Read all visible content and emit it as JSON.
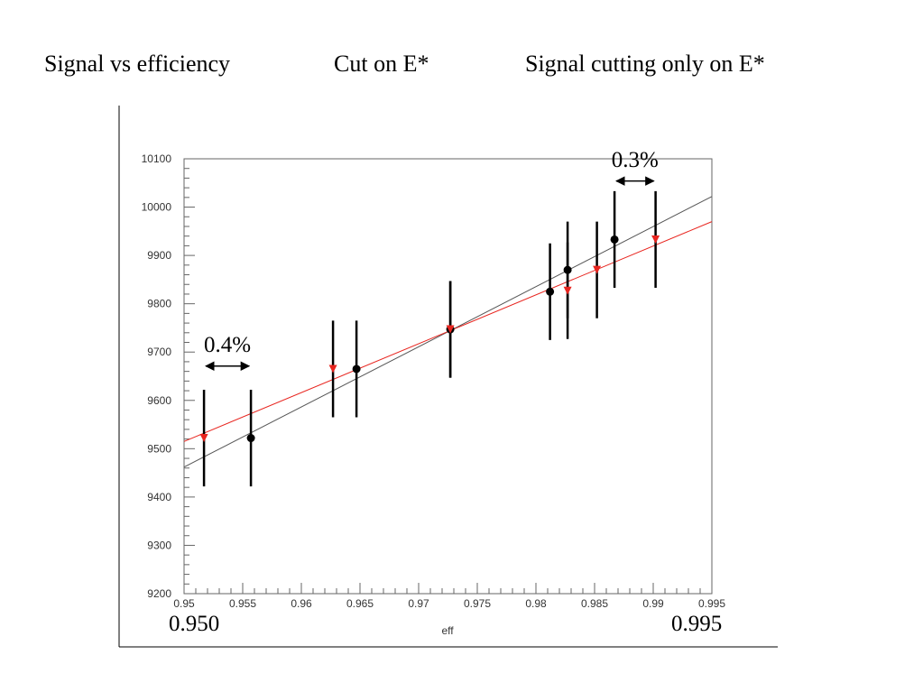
{
  "headings": {
    "left": "Signal vs efficiency",
    "middle": "Cut on E*",
    "right": "Signal cutting only on E*"
  },
  "chart_data": {
    "type": "scatter",
    "xlabel": "eff",
    "ylabel": "",
    "xlim": [
      0.95,
      0.995
    ],
    "ylim": [
      9200,
      10100
    ],
    "x_ticks": [
      "0.95",
      "0.955",
      "0.96",
      "0.965",
      "0.97",
      "0.975",
      "0.98",
      "0.985",
      "0.99",
      "0.995"
    ],
    "y_ticks": [
      "9200",
      "9300",
      "9400",
      "9500",
      "9600",
      "9700",
      "9800",
      "9900",
      "10000",
      "10100"
    ],
    "grid": false,
    "series": [
      {
        "color": "#000000",
        "marker": "circle",
        "points": [
          {
            "x": 0.9557,
            "y": 9522,
            "err": 100
          },
          {
            "x": 0.9647,
            "y": 9665,
            "err": 100
          },
          {
            "x": 0.9727,
            "y": 9747,
            "err": 100
          },
          {
            "x": 0.9812,
            "y": 9825,
            "err": 100
          },
          {
            "x": 0.9827,
            "y": 9870,
            "err": 100
          },
          {
            "x": 0.9867,
            "y": 9933,
            "err": 100
          }
        ],
        "fit": {
          "x": [
            0.95,
            0.995
          ],
          "y": [
            9462,
            10022
          ]
        }
      },
      {
        "color": "#e8251f",
        "marker": "triangle-down",
        "points": [
          {
            "x": 0.9517,
            "y": 9522,
            "err": 100
          },
          {
            "x": 0.9627,
            "y": 9665,
            "err": 100
          },
          {
            "x": 0.9727,
            "y": 9747,
            "err": 100
          },
          {
            "x": 0.9827,
            "y": 9827,
            "err": 100
          },
          {
            "x": 0.9852,
            "y": 9870,
            "err": 100
          },
          {
            "x": 0.9902,
            "y": 9933,
            "err": 100
          }
        ],
        "fit": {
          "x": [
            0.95,
            0.995
          ],
          "y": [
            9515,
            9970
          ]
        }
      }
    ],
    "annotations": [
      {
        "text": "0.4%",
        "x1": 0.9517,
        "x2": 0.9557,
        "y": 9671,
        "label_y": 9700
      },
      {
        "text": "0.3%",
        "x1": 0.9867,
        "x2": 0.9902,
        "y": 10054,
        "label_y": 10083
      }
    ],
    "x_endpoint_labels": {
      "left": "0.950",
      "right": "0.995"
    }
  }
}
